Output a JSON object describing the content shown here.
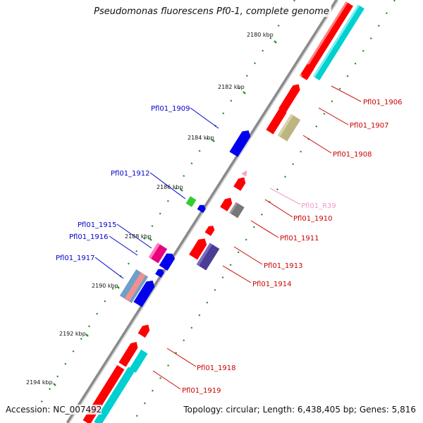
{
  "title": "Pseudomonas fluorescens Pf0-1, complete genome",
  "footer": {
    "accession": "Accession: NC_007492",
    "topology": "Topology: circular; Length: 6,438,405 bp; Genes: 5,816"
  },
  "ticks": [
    "2180 kbp",
    "2182 kbp",
    "2184 kbp",
    "2186 kbp",
    "2188 kbp",
    "2190 kbp",
    "2192 kbp",
    "2194 kbp"
  ],
  "genes_left": [
    {
      "id": "Pfl01_1909",
      "color": "#0000cc"
    },
    {
      "id": "Pfl01_1912",
      "color": "#0000cc"
    },
    {
      "id": "Pfl01_1915",
      "color": "#0000cc"
    },
    {
      "id": "Pfl01_1916",
      "color": "#0000cc"
    },
    {
      "id": "Pfl01_1917",
      "color": "#0000cc"
    }
  ],
  "genes_right": [
    {
      "id": "Pfl01_1906",
      "color": "#cc0000"
    },
    {
      "id": "Pfl01_1907",
      "color": "#cc0000"
    },
    {
      "id": "Pfl01_1908",
      "color": "#cc0000"
    },
    {
      "id": "Pfl01_R39",
      "color": "#f19bc6"
    },
    {
      "id": "Pfl01_1910",
      "color": "#cc0000"
    },
    {
      "id": "Pfl01_1911",
      "color": "#cc0000"
    },
    {
      "id": "Pfl01_1913",
      "color": "#cc0000"
    },
    {
      "id": "Pfl01_1914",
      "color": "#cc0000"
    },
    {
      "id": "Pfl01_1918",
      "color": "#cc0000"
    },
    {
      "id": "Pfl01_1919",
      "color": "#cc0000"
    }
  ],
  "colors": {
    "backbone": "#8a8a8a",
    "cds_forward": "#ff0000",
    "cds_reverse": "#0000ee",
    "rna": "#ffffff",
    "tick_dots": "#1e8c1e"
  }
}
